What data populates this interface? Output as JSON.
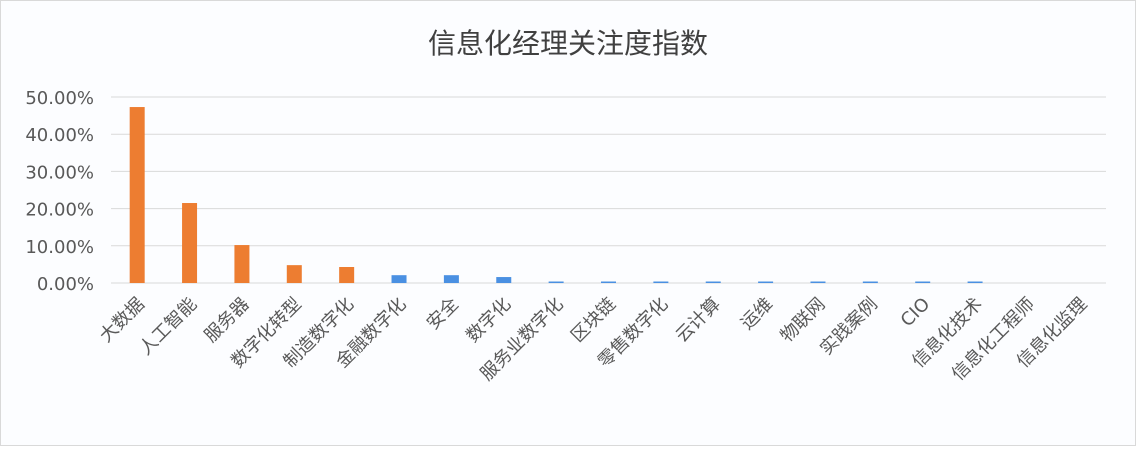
{
  "chart_data": {
    "type": "bar",
    "title": "信息化经理关注度指数",
    "xlabel": "",
    "ylabel": "",
    "ylim": [
      0,
      50
    ],
    "yticks": [
      "0.00%",
      "10.00%",
      "20.00%",
      "30.00%",
      "40.00%",
      "50.00%"
    ],
    "grid": true,
    "legend": "none",
    "categories": [
      "大数据",
      "人工智能",
      "服务器",
      "数字化转型",
      "制造数字化",
      "金融数字化",
      "安全",
      "数字化",
      "服务业数字化",
      "区块链",
      "零售数字化",
      "云计算",
      "运维",
      "物联网",
      "实践案例",
      "CIO",
      "信息化技术",
      "信息化工程师",
      "信息化监理"
    ],
    "values": [
      47.3,
      21.5,
      10.2,
      4.8,
      4.3,
      2.1,
      2.1,
      1.6,
      0.4,
      0.4,
      0.4,
      0.4,
      0.4,
      0.4,
      0.4,
      0.4,
      0.4,
      0,
      0
    ],
    "unit": "%",
    "colors": {
      "highlight": "#ed7d31",
      "normal": "#4a90e2"
    },
    "highlighted_count": 5
  }
}
